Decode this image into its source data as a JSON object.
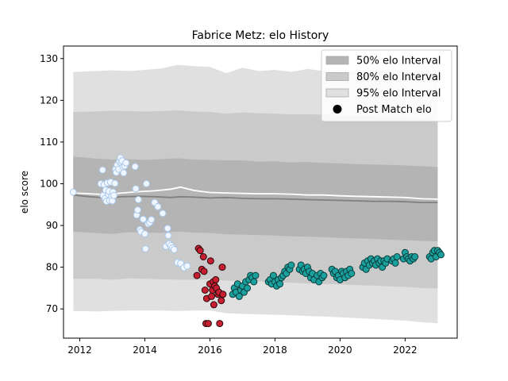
{
  "chart_data": {
    "type": "scatter",
    "title": "Fabrice Metz: elo History",
    "xlabel": "",
    "ylabel": "elo score",
    "xlim": [
      2011.5,
      2023.6
    ],
    "ylim": [
      63,
      133
    ],
    "xticks": [
      2012,
      2014,
      2016,
      2018,
      2020,
      2022
    ],
    "yticks": [
      70,
      80,
      90,
      100,
      110,
      120,
      130
    ],
    "grid": false,
    "legend_position": "top-right",
    "bands": [
      {
        "name": "95% elo Interval",
        "color": "#e0e0e0",
        "x": [
          2011.8,
          2012.5,
          2013.0,
          2013.5,
          2014.0,
          2014.5,
          2015.0,
          2015.5,
          2016.0,
          2016.5,
          2017.0,
          2017.5,
          2018.0,
          2018.5,
          2019.0,
          2019.5,
          2020.0,
          2020.5,
          2021.0,
          2021.5,
          2022.0,
          2022.5,
          2023.0
        ],
        "upper": [
          126.8,
          127.0,
          127.2,
          127.0,
          127.3,
          127.6,
          128.5,
          128.2,
          128.0,
          126.5,
          127.8,
          127.0,
          127.3,
          126.8,
          127.5,
          127.0,
          127.3,
          126.8,
          127.0,
          127.4,
          126.6,
          127.0,
          126.2
        ],
        "lower": [
          69.5,
          69.4,
          69.5,
          69.6,
          69.6,
          69.6,
          69.5,
          69.6,
          69.6,
          69.0,
          68.8,
          68.7,
          68.6,
          68.5,
          68.3,
          68.2,
          68.0,
          67.8,
          67.6,
          67.4,
          67.2,
          66.8,
          66.6
        ]
      },
      {
        "name": "80% elo Interval",
        "color": "#cacaca",
        "x": [
          2011.8,
          2012.5,
          2013.0,
          2013.5,
          2014.0,
          2014.5,
          2015.0,
          2015.5,
          2016.0,
          2016.5,
          2017.0,
          2017.5,
          2018.0,
          2018.5,
          2019.0,
          2019.5,
          2020.0,
          2020.5,
          2021.0,
          2021.5,
          2022.0,
          2022.5,
          2023.0
        ],
        "upper": [
          117.2,
          117.3,
          117.5,
          117.4,
          117.3,
          117.4,
          117.6,
          117.3,
          117.2,
          116.8,
          117.1,
          116.9,
          116.8,
          116.6,
          116.7,
          116.5,
          116.4,
          116.2,
          116.1,
          116.0,
          115.9,
          115.6,
          115.0
        ],
        "lower": [
          77.2,
          77.2,
          77.0,
          77.3,
          77.2,
          77.1,
          77.0,
          77.0,
          77.1,
          76.8,
          76.7,
          76.6,
          76.4,
          76.3,
          76.1,
          76.0,
          75.9,
          75.7,
          75.6,
          75.4,
          75.3,
          75.0,
          74.9
        ]
      },
      {
        "name": "50% elo Interval",
        "color": "#b4b4b4",
        "x": [
          2011.8,
          2012.5,
          2013.0,
          2013.5,
          2014.0,
          2014.5,
          2015.0,
          2015.5,
          2016.0,
          2016.5,
          2017.0,
          2017.5,
          2018.0,
          2018.5,
          2019.0,
          2019.5,
          2020.0,
          2020.5,
          2021.0,
          2021.5,
          2022.0,
          2022.5,
          2023.0
        ],
        "upper": [
          106.5,
          106.0,
          105.8,
          105.9,
          105.7,
          105.9,
          106.1,
          105.8,
          105.7,
          105.6,
          105.6,
          105.3,
          105.4,
          105.1,
          105.2,
          105.0,
          104.9,
          104.7,
          104.6,
          104.5,
          104.4,
          104.2,
          104.0
        ],
        "lower": [
          88.5,
          88.2,
          88.0,
          88.4,
          88.3,
          88.2,
          88.5,
          88.3,
          88.2,
          87.9,
          87.8,
          87.7,
          87.6,
          87.4,
          87.3,
          87.2,
          87.0,
          86.9,
          86.8,
          86.6,
          86.5,
          86.3,
          86.2
        ]
      }
    ],
    "lines": [
      {
        "color": "#ffffff",
        "x": [
          2011.8,
          2012.3,
          2012.8,
          2013.3,
          2013.8,
          2014.3,
          2014.8,
          2015.1,
          2015.5,
          2016.0,
          2016.5,
          2017.0,
          2017.5,
          2018.0,
          2018.5,
          2019.0,
          2019.5,
          2020.0,
          2020.5,
          2021.0,
          2021.5,
          2022.0,
          2022.5,
          2023.0
        ],
        "y": [
          97.8,
          97.6,
          97.4,
          97.8,
          98.1,
          98.3,
          98.7,
          99.2,
          98.4,
          97.9,
          97.8,
          97.7,
          97.6,
          97.6,
          97.5,
          97.3,
          97.3,
          97.1,
          97.0,
          96.9,
          96.8,
          96.7,
          96.4,
          96.3
        ]
      },
      {
        "color": "#808080",
        "x": [
          2011.8,
          2012.3,
          2012.8,
          2013.3,
          2013.8,
          2014.3,
          2014.8,
          2015.1,
          2015.5,
          2016.0,
          2016.5,
          2017.0,
          2017.5,
          2018.0,
          2018.5,
          2019.0,
          2019.5,
          2020.0,
          2020.5,
          2021.0,
          2021.5,
          2022.0,
          2022.5,
          2023.0
        ],
        "y": [
          97.3,
          96.9,
          96.6,
          96.9,
          97.0,
          96.9,
          96.7,
          96.9,
          96.8,
          96.6,
          96.7,
          96.5,
          96.4,
          96.4,
          96.3,
          96.2,
          96.1,
          96.0,
          95.9,
          95.8,
          95.8,
          95.7,
          95.5,
          95.5
        ]
      }
    ],
    "series": [
      {
        "color": "#f0f6ff",
        "edge": "#aac8ea",
        "x": [
          2011.8,
          2012.65,
          2012.7,
          2012.72,
          2012.75,
          2012.78,
          2012.8,
          2012.82,
          2012.85,
          2012.88,
          2012.9,
          2012.92,
          2012.95,
          2012.98,
          2013.0,
          2013.02,
          2013.05,
          2013.08,
          2013.1,
          2013.12,
          2013.15,
          2013.2,
          2013.22,
          2013.25,
          2013.28,
          2013.3,
          2013.33,
          2013.35,
          2013.38,
          2013.42,
          2013.7,
          2013.72,
          2013.75,
          2013.78,
          2013.8,
          2013.85,
          2013.88,
          2013.95,
          2014.0,
          2014.02,
          2014.05,
          2014.1,
          2014.15,
          2014.2,
          2014.3,
          2014.4,
          2014.55,
          2014.65,
          2014.7,
          2014.72,
          2014.75,
          2014.8,
          2014.85,
          2014.9,
          2015.0,
          2015.1,
          2015.2,
          2015.3
        ],
        "y": [
          98.0,
          100.0,
          103.3,
          97.2,
          99.8,
          96.5,
          98.5,
          95.8,
          100.2,
          97.5,
          98.2,
          96.0,
          100.4,
          97.0,
          95.9,
          98.0,
          97.2,
          100.1,
          103.5,
          102.7,
          104.5,
          103.5,
          105.3,
          106.2,
          104.9,
          105.5,
          104.0,
          102.6,
          104.3,
          105.0,
          104.1,
          98.8,
          92.5,
          93.7,
          96.2,
          89.0,
          88.5,
          91.5,
          88.0,
          84.4,
          100.0,
          90.4,
          90.7,
          91.4,
          95.5,
          94.5,
          92.9,
          85.0,
          89.3,
          87.6,
          85.6,
          85.2,
          84.6,
          84.2,
          81.1,
          80.9,
          79.9,
          80.3
        ]
      },
      {
        "color": "#c81e32",
        "edge": "#2a0a0a",
        "x": [
          2015.6,
          2015.65,
          2015.7,
          2015.75,
          2015.8,
          2015.82,
          2015.85,
          2015.88,
          2015.9,
          2015.95,
          2016.0,
          2016.02,
          2016.05,
          2016.08,
          2016.1,
          2016.12,
          2016.15,
          2016.18,
          2016.2,
          2016.25,
          2016.28,
          2016.3,
          2016.35,
          2016.38,
          2016.4
        ],
        "y": [
          78.0,
          84.5,
          84.0,
          79.5,
          82.5,
          79.0,
          74.5,
          66.5,
          72.5,
          66.5,
          76.0,
          81.5,
          73.0,
          74.5,
          76.5,
          71.0,
          75.5,
          77.0,
          75.0,
          73.5,
          74.0,
          66.5,
          72.0,
          80.0,
          73.5
        ]
      },
      {
        "color": "#1aa19e",
        "edge": "#0b3b3a",
        "x": [
          2016.7,
          2016.75,
          2016.8,
          2016.85,
          2016.9,
          2016.95,
          2017.0,
          2017.05,
          2017.1,
          2017.15,
          2017.2,
          2017.25,
          2017.3,
          2017.35,
          2017.4,
          2017.8,
          2017.85,
          2017.9,
          2017.95,
          2018.0,
          2018.05,
          2018.1,
          2018.15,
          2018.2,
          2018.25,
          2018.3,
          2018.35,
          2018.4,
          2018.45,
          2018.5,
          2018.75,
          2018.8,
          2018.85,
          2018.9,
          2018.95,
          2019.0,
          2019.05,
          2019.1,
          2019.15,
          2019.2,
          2019.3,
          2019.35,
          2019.4,
          2019.45,
          2019.5,
          2019.75,
          2019.8,
          2019.85,
          2019.9,
          2019.95,
          2020.0,
          2020.05,
          2020.1,
          2020.15,
          2020.2,
          2020.25,
          2020.3,
          2020.35,
          2020.7,
          2020.75,
          2020.8,
          2020.85,
          2020.9,
          2020.95,
          2021.0,
          2021.05,
          2021.1,
          2021.15,
          2021.2,
          2021.25,
          2021.3,
          2021.35,
          2021.4,
          2021.45,
          2021.6,
          2021.65,
          2021.7,
          2021.75,
          2021.95,
          2022.0,
          2022.05,
          2022.1,
          2022.15,
          2022.2,
          2022.25,
          2022.3,
          2022.75,
          2022.8,
          2022.85,
          2022.9,
          2022.95,
          2023.0,
          2023.05,
          2023.1
        ],
        "y": [
          73.5,
          75.0,
          74.0,
          76.0,
          73.0,
          74.5,
          75.5,
          74.0,
          76.5,
          75.0,
          77.0,
          78.0,
          77.5,
          76.5,
          78.0,
          76.5,
          77.0,
          76.0,
          78.0,
          76.5,
          75.5,
          77.0,
          76.0,
          77.5,
          78.0,
          79.0,
          78.5,
          80.0,
          79.5,
          80.5,
          79.5,
          80.5,
          79.0,
          79.5,
          78.5,
          80.0,
          79.0,
          77.5,
          78.5,
          77.0,
          78.0,
          76.5,
          78.5,
          77.5,
          78.0,
          79.5,
          78.5,
          79.0,
          77.5,
          78.0,
          77.0,
          79.0,
          78.5,
          77.5,
          79.0,
          78.0,
          79.5,
          78.5,
          80.0,
          81.0,
          79.5,
          81.5,
          80.5,
          82.0,
          81.0,
          81.5,
          80.5,
          82.0,
          81.0,
          81.5,
          80.0,
          81.5,
          81.0,
          82.0,
          81.5,
          82.0,
          81.0,
          82.5,
          82.0,
          83.5,
          82.5,
          82.0,
          81.5,
          82.5,
          82.0,
          82.5,
          82.5,
          82.0,
          83.5,
          84.0,
          82.5,
          84.0,
          83.5,
          83.0
        ]
      }
    ],
    "legend": [
      {
        "label": "50% elo Interval",
        "kind": "patch",
        "color": "#b4b4b4"
      },
      {
        "label": "80% elo Interval",
        "kind": "patch",
        "color": "#cacaca"
      },
      {
        "label": "95% elo Interval",
        "kind": "patch",
        "color": "#e0e0e0"
      },
      {
        "label": "Post Match elo",
        "kind": "marker",
        "color": "#000000"
      }
    ]
  }
}
